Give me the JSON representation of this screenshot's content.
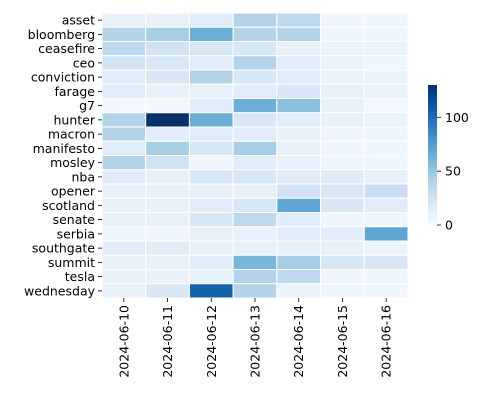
{
  "chart_data": {
    "type": "heatmap",
    "title": "",
    "xlabel": "",
    "ylabel": "",
    "x_categories": [
      "2024-06-10",
      "2024-06-11",
      "2024-06-12",
      "2024-06-13",
      "2024-06-14",
      "2024-06-15",
      "2024-06-16"
    ],
    "y_categories": [
      "asset",
      "bloomberg",
      "ceasefire",
      "ceo",
      "conviction",
      "farage",
      "g7",
      "hunter",
      "macron",
      "manifesto",
      "mosley",
      "nba",
      "opener",
      "scotland",
      "senate",
      "serbia",
      "southgate",
      "summit",
      "tesla",
      "wednesday"
    ],
    "values": [
      [
        10,
        10,
        15,
        40,
        35,
        5,
        5
      ],
      [
        40,
        45,
        65,
        40,
        40,
        5,
        5
      ],
      [
        35,
        25,
        20,
        20,
        10,
        8,
        8
      ],
      [
        25,
        20,
        15,
        40,
        15,
        8,
        5
      ],
      [
        15,
        20,
        40,
        20,
        15,
        8,
        8
      ],
      [
        15,
        10,
        10,
        15,
        20,
        10,
        8
      ],
      [
        3,
        3,
        15,
        65,
        55,
        10,
        3
      ],
      [
        40,
        130,
        65,
        20,
        15,
        10,
        8
      ],
      [
        40,
        15,
        15,
        15,
        10,
        5,
        5
      ],
      [
        15,
        45,
        20,
        45,
        10,
        5,
        5
      ],
      [
        40,
        25,
        5,
        15,
        10,
        5,
        5
      ],
      [
        15,
        10,
        20,
        20,
        15,
        15,
        10
      ],
      [
        10,
        10,
        10,
        10,
        25,
        20,
        30
      ],
      [
        10,
        10,
        15,
        20,
        70,
        20,
        15
      ],
      [
        10,
        10,
        20,
        35,
        15,
        5,
        5
      ],
      [
        5,
        5,
        10,
        10,
        15,
        15,
        70
      ],
      [
        15,
        15,
        10,
        10,
        10,
        10,
        8
      ],
      [
        10,
        10,
        15,
        60,
        45,
        20,
        20
      ],
      [
        10,
        10,
        10,
        40,
        35,
        5,
        5
      ],
      [
        10,
        20,
        105,
        40,
        8,
        5,
        5
      ]
    ],
    "colorbar": {
      "min": 0,
      "max": 130,
      "ticks": [
        0,
        50,
        100
      ],
      "colormap": "Blues"
    },
    "grid": true,
    "legend": "colorbar right"
  }
}
